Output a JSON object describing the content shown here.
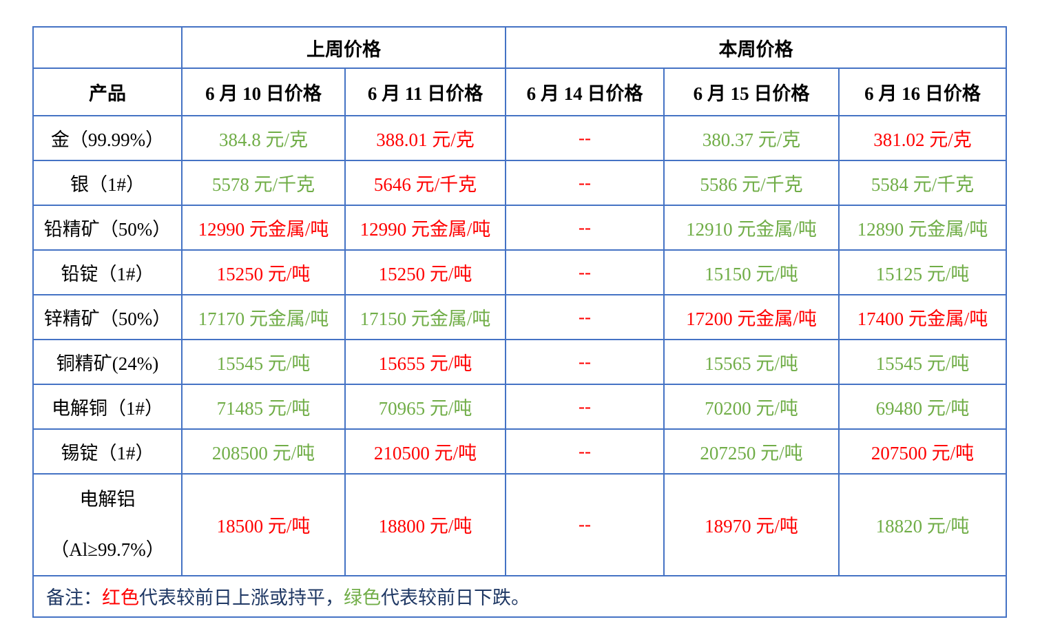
{
  "table": {
    "colors": {
      "border": "#4472C4",
      "up_or_flat": "#FF0000",
      "down": "#70AD47",
      "note_text": "#1F3864"
    },
    "header_groups": {
      "blank": "",
      "last_week": "上周价格",
      "this_week": "本周价格"
    },
    "columns": [
      "产品",
      "6 月 10 日价格",
      "6 月 11 日价格",
      "6 月 14 日价格",
      "6 月 15 日价格",
      "6 月 16 日价格"
    ],
    "rows": [
      {
        "product": "金（99.99%）",
        "prices": [
          {
            "text": "384.8 元/克",
            "trend": "down"
          },
          {
            "text": "388.01 元/克",
            "trend": "up"
          },
          {
            "text": "--",
            "trend": "up"
          },
          {
            "text": "380.37 元/克",
            "trend": "down"
          },
          {
            "text": "381.02 元/克",
            "trend": "up"
          }
        ]
      },
      {
        "product": "银（1#）",
        "prices": [
          {
            "text": "5578 元/千克",
            "trend": "down"
          },
          {
            "text": "5646 元/千克",
            "trend": "up"
          },
          {
            "text": "--",
            "trend": "up"
          },
          {
            "text": "5586 元/千克",
            "trend": "down"
          },
          {
            "text": "5584 元/千克",
            "trend": "down"
          }
        ]
      },
      {
        "product": "铅精矿（50%）",
        "prices": [
          {
            "text": "12990 元金属/吨",
            "trend": "up"
          },
          {
            "text": "12990 元金属/吨",
            "trend": "up"
          },
          {
            "text": "--",
            "trend": "up"
          },
          {
            "text": "12910 元金属/吨",
            "trend": "down"
          },
          {
            "text": "12890 元金属/吨",
            "trend": "down"
          }
        ]
      },
      {
        "product": "铅锭（1#）",
        "prices": [
          {
            "text": "15250 元/吨",
            "trend": "up"
          },
          {
            "text": "15250 元/吨",
            "trend": "up"
          },
          {
            "text": "--",
            "trend": "up"
          },
          {
            "text": "15150 元/吨",
            "trend": "down"
          },
          {
            "text": "15125 元/吨",
            "trend": "down"
          }
        ]
      },
      {
        "product": "锌精矿（50%）",
        "prices": [
          {
            "text": "17170 元金属/吨",
            "trend": "down"
          },
          {
            "text": "17150 元金属/吨",
            "trend": "down"
          },
          {
            "text": "--",
            "trend": "up"
          },
          {
            "text": "17200 元金属/吨",
            "trend": "up"
          },
          {
            "text": "17400 元金属/吨",
            "trend": "up"
          }
        ]
      },
      {
        "product": "铜精矿(24%)",
        "prices": [
          {
            "text": "15545 元/吨",
            "trend": "down"
          },
          {
            "text": "15655 元/吨",
            "trend": "up"
          },
          {
            "text": "--",
            "trend": "up"
          },
          {
            "text": "15565 元/吨",
            "trend": "down"
          },
          {
            "text": "15545 元/吨",
            "trend": "down"
          }
        ]
      },
      {
        "product": "电解铜（1#）",
        "prices": [
          {
            "text": "71485 元/吨",
            "trend": "down"
          },
          {
            "text": "70965 元/吨",
            "trend": "down"
          },
          {
            "text": "--",
            "trend": "up"
          },
          {
            "text": "70200 元/吨",
            "trend": "down"
          },
          {
            "text": "69480 元/吨",
            "trend": "down"
          }
        ]
      },
      {
        "product": "锡锭（1#）",
        "prices": [
          {
            "text": "208500 元/吨",
            "trend": "down"
          },
          {
            "text": "210500 元/吨",
            "trend": "up"
          },
          {
            "text": "--",
            "trend": "up"
          },
          {
            "text": "207250 元/吨",
            "trend": "down"
          },
          {
            "text": "207500 元/吨",
            "trend": "up"
          }
        ]
      },
      {
        "product": "电解铝（Al≥99.7%）",
        "prices": [
          {
            "text": "18500 元/吨",
            "trend": "up"
          },
          {
            "text": "18800 元/吨",
            "trend": "up"
          },
          {
            "text": "--",
            "trend": "up"
          },
          {
            "text": "18970 元/吨",
            "trend": "up"
          },
          {
            "text": "18820 元/吨",
            "trend": "down"
          }
        ]
      }
    ],
    "note": {
      "prefix": "备注：",
      "red_word": "红色",
      "mid": "代表较前日上涨或持平，",
      "green_word": "绿色",
      "suffix": "代表较前日下跌。"
    }
  }
}
